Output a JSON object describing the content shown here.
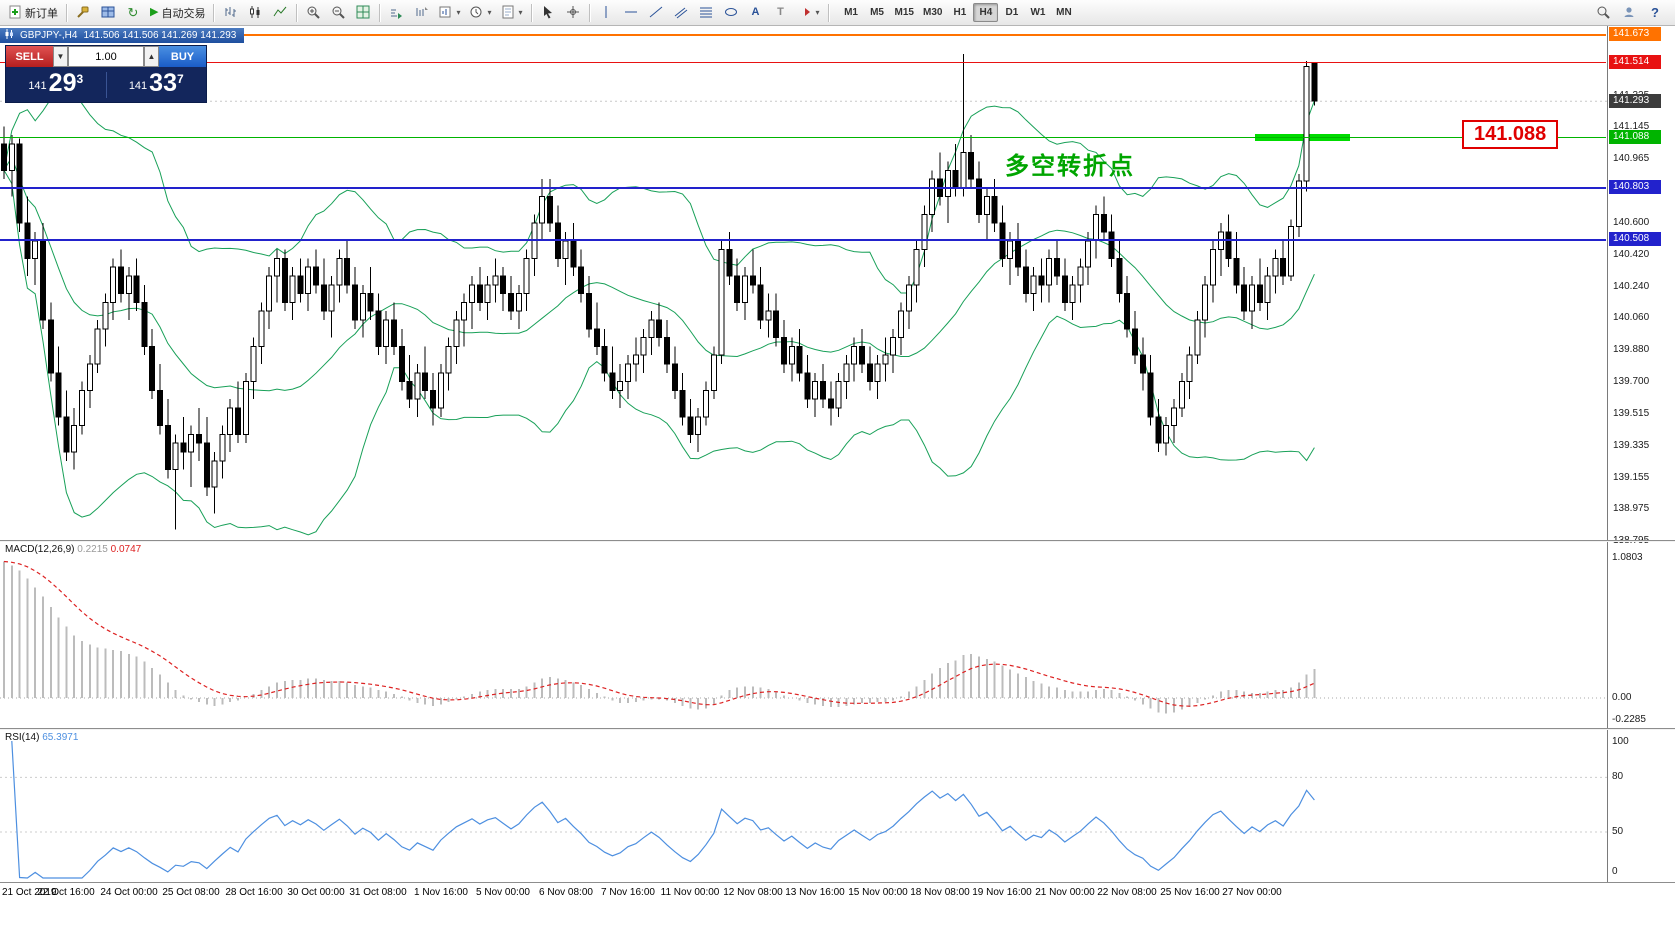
{
  "toolbar": {
    "new_order_label": "新订单",
    "auto_trading_label": "自动交易",
    "timeframes": [
      "M1",
      "M5",
      "M15",
      "M30",
      "H1",
      "H4",
      "D1",
      "W1",
      "MN"
    ],
    "active_timeframe": "H4",
    "icons": [
      "new-order-icon",
      "metaeditor-icon",
      "profiles-icon",
      "refresh-icon",
      "auto-trading-icon",
      "bar-chart-icon",
      "candlestick-chart-icon",
      "line-chart-icon",
      "zoom-in-icon",
      "zoom-out-icon",
      "tile-windows-icon",
      "autoscroll-icon",
      "chart-shift-icon",
      "new-chart-icon",
      "periods-icon",
      "templates-icon",
      "cursor-icon",
      "crosshair-icon",
      "vertical-line-icon",
      "horizontal-line-icon",
      "trendline-icon",
      "channel-icon",
      "fibonacci-icon",
      "shapes-icon",
      "text-icon",
      "arrows-icon",
      "search-icon",
      "community-icon",
      "help-icon",
      "volume-up-icon",
      "volume-down-icon"
    ]
  },
  "chart": {
    "title_symbol": "GBPJPY-,H4",
    "title_ohlc": "141.506 141.506 141.269 141.293",
    "current_price": "141.293",
    "annotation": "多空转折点",
    "price_flag_label": "141.088"
  },
  "one_click": {
    "sell_label": "SELL",
    "buy_label": "BUY",
    "volume": "1.00",
    "sell_price": {
      "prefix": "141",
      "big": "29",
      "sup": "3"
    },
    "buy_price": {
      "prefix": "141",
      "big": "33",
      "sup": "7"
    }
  },
  "indicators": {
    "macd": {
      "label": "MACD(12,26,9)",
      "value_main": "0.2215",
      "value_signal": "0.0747",
      "axis": [
        "1.0803",
        "0.00",
        "-0.2285"
      ]
    },
    "rsi": {
      "label": "RSI(14)",
      "value": "65.3971",
      "axis": [
        "100",
        "80",
        "50",
        "0"
      ]
    }
  },
  "colors": {
    "bull_candle": "#ffffff",
    "bear_candle": "#000000",
    "wick": "#000000",
    "bollinger": "#18a058",
    "macd_histogram": "#bcbcbc",
    "macd_signal": "#dd2222",
    "rsi_line": "#4d8fe0",
    "sell_button": "#c02020",
    "buy_button": "#1a5cc8",
    "panel_bg": "#13265c",
    "highlight_green": "#00dc00",
    "annotation_green": "#00a500",
    "flag_red": "#e00000",
    "current_price_box": "#3c3c3c"
  },
  "chart_data": {
    "type": "candlestick",
    "symbol": "GBPJPY",
    "timeframe": "H4",
    "price_range": [
      138.8,
      141.72
    ],
    "bid": 141.293,
    "bollinger": {
      "period": 20,
      "deviation": 2
    },
    "levels": [
      {
        "price": 141.673,
        "color": "#ff7200",
        "thickness": 2,
        "type": "resistance"
      },
      {
        "price": 141.514,
        "color": "#e81212",
        "thickness": 1,
        "type": "resistance"
      },
      {
        "price": 141.088,
        "color": "#00b400",
        "thickness": 1,
        "type": "pivot"
      },
      {
        "price": 140.803,
        "color": "#2222cc",
        "thickness": 2,
        "type": "support"
      },
      {
        "price": 140.508,
        "color": "#2222cc",
        "thickness": 2,
        "type": "support"
      }
    ],
    "y_ticks": [
      "141.325",
      "141.145",
      "140.965",
      "140.783",
      "140.600",
      "140.420",
      "140.240",
      "140.060",
      "139.880",
      "139.700",
      "139.515",
      "139.335",
      "139.155",
      "138.975",
      "138.795"
    ],
    "x_labels": [
      "21 Oct 2019",
      "22 Oct 16:00",
      "24 Oct 00:00",
      "25 Oct 08:00",
      "28 Oct 16:00",
      "30 Oct 00:00",
      "31 Oct 08:00",
      "1 Nov 16:00",
      "5 Nov 00:00",
      "6 Nov 08:00",
      "7 Nov 16:00",
      "11 Nov 00:00",
      "12 Nov 08:00",
      "13 Nov 16:00",
      "15 Nov 00:00",
      "18 Nov 08:00",
      "19 Nov 16:00",
      "21 Nov 00:00",
      "22 Nov 08:00",
      "25 Nov 16:00",
      "27 Nov 00:00"
    ],
    "candles": [
      [
        141.05,
        141.15,
        140.85,
        140.9
      ],
      [
        140.9,
        141.1,
        140.75,
        141.05
      ],
      [
        141.05,
        141.08,
        140.55,
        140.6
      ],
      [
        140.6,
        140.75,
        140.3,
        140.4
      ],
      [
        140.4,
        140.55,
        140.25,
        140.5
      ],
      [
        140.5,
        140.6,
        140.0,
        140.05
      ],
      [
        140.05,
        140.15,
        139.7,
        139.75
      ],
      [
        139.75,
        139.9,
        139.45,
        139.5
      ],
      [
        139.5,
        139.65,
        139.25,
        139.3
      ],
      [
        139.3,
        139.55,
        139.2,
        139.45
      ],
      [
        139.45,
        139.7,
        139.4,
        139.65
      ],
      [
        139.65,
        139.85,
        139.55,
        139.8
      ],
      [
        139.8,
        140.05,
        139.75,
        140.0
      ],
      [
        140.0,
        140.2,
        139.9,
        140.15
      ],
      [
        140.15,
        140.4,
        140.05,
        140.35
      ],
      [
        140.35,
        140.45,
        140.15,
        140.2
      ],
      [
        140.2,
        140.35,
        140.05,
        140.3
      ],
      [
        140.3,
        140.4,
        140.1,
        140.15
      ],
      [
        140.15,
        140.25,
        139.85,
        139.9
      ],
      [
        139.9,
        140.0,
        139.6,
        139.65
      ],
      [
        139.65,
        139.8,
        139.4,
        139.45
      ],
      [
        139.45,
        139.6,
        139.15,
        139.2
      ],
      [
        139.2,
        139.4,
        138.86,
        139.35
      ],
      [
        139.35,
        139.5,
        139.2,
        139.3
      ],
      [
        139.3,
        139.45,
        139.1,
        139.4
      ],
      [
        139.4,
        139.55,
        139.25,
        139.35
      ],
      [
        139.35,
        139.5,
        139.05,
        139.1
      ],
      [
        139.1,
        139.3,
        138.95,
        139.25
      ],
      [
        139.25,
        139.45,
        139.15,
        139.4
      ],
      [
        139.4,
        139.6,
        139.3,
        139.55
      ],
      [
        139.55,
        139.7,
        139.35,
        139.4
      ],
      [
        139.4,
        139.75,
        139.35,
        139.7
      ],
      [
        139.7,
        139.95,
        139.6,
        139.9
      ],
      [
        139.9,
        140.15,
        139.8,
        140.1
      ],
      [
        140.1,
        140.35,
        140.0,
        140.3
      ],
      [
        140.3,
        140.45,
        140.15,
        140.4
      ],
      [
        140.4,
        140.45,
        140.1,
        140.15
      ],
      [
        140.15,
        140.35,
        140.05,
        140.3
      ],
      [
        140.3,
        140.4,
        140.15,
        140.2
      ],
      [
        140.2,
        140.4,
        140.1,
        140.35
      ],
      [
        140.35,
        140.45,
        140.2,
        140.25
      ],
      [
        140.25,
        140.4,
        140.05,
        140.1
      ],
      [
        140.1,
        140.3,
        139.95,
        140.25
      ],
      [
        140.25,
        140.45,
        140.15,
        140.4
      ],
      [
        140.4,
        140.5,
        140.2,
        140.25
      ],
      [
        140.25,
        140.35,
        140.0,
        140.05
      ],
      [
        140.05,
        140.25,
        139.95,
        140.2
      ],
      [
        140.2,
        140.35,
        140.05,
        140.1
      ],
      [
        140.1,
        140.2,
        139.85,
        139.9
      ],
      [
        139.9,
        140.1,
        139.8,
        140.05
      ],
      [
        140.05,
        140.15,
        139.85,
        139.9
      ],
      [
        139.9,
        140.0,
        139.65,
        139.7
      ],
      [
        139.7,
        139.85,
        139.55,
        139.6
      ],
      [
        139.6,
        139.8,
        139.5,
        139.75
      ],
      [
        139.75,
        139.9,
        139.6,
        139.65
      ],
      [
        139.65,
        139.75,
        139.45,
        139.55
      ],
      [
        139.55,
        139.8,
        139.5,
        139.75
      ],
      [
        139.75,
        139.95,
        139.65,
        139.9
      ],
      [
        139.9,
        140.1,
        139.8,
        140.05
      ],
      [
        140.05,
        140.2,
        139.9,
        140.15
      ],
      [
        140.15,
        140.3,
        140.0,
        140.25
      ],
      [
        140.25,
        140.35,
        140.1,
        140.15
      ],
      [
        140.15,
        140.3,
        140.05,
        140.25
      ],
      [
        140.25,
        140.4,
        140.15,
        140.3
      ],
      [
        140.3,
        140.35,
        140.1,
        140.2
      ],
      [
        140.2,
        140.3,
        140.05,
        140.1
      ],
      [
        140.1,
        140.25,
        140.0,
        140.2
      ],
      [
        140.2,
        140.45,
        140.1,
        140.4
      ],
      [
        140.4,
        140.65,
        140.3,
        140.6
      ],
      [
        140.6,
        140.85,
        140.5,
        140.75
      ],
      [
        140.75,
        140.85,
        140.55,
        140.6
      ],
      [
        140.6,
        140.7,
        140.35,
        140.4
      ],
      [
        140.4,
        140.55,
        140.25,
        140.5
      ],
      [
        140.5,
        140.6,
        140.3,
        140.35
      ],
      [
        140.35,
        140.45,
        140.15,
        140.2
      ],
      [
        140.2,
        140.3,
        139.95,
        140.0
      ],
      [
        140.0,
        140.15,
        139.85,
        139.9
      ],
      [
        139.9,
        140.0,
        139.7,
        139.75
      ],
      [
        139.75,
        139.9,
        139.6,
        139.65
      ],
      [
        139.65,
        139.8,
        139.55,
        139.7
      ],
      [
        139.7,
        139.85,
        139.6,
        139.8
      ],
      [
        139.8,
        139.95,
        139.7,
        139.85
      ],
      [
        139.85,
        140.0,
        139.75,
        139.95
      ],
      [
        139.95,
        140.1,
        139.85,
        140.05
      ],
      [
        140.05,
        140.15,
        139.9,
        139.95
      ],
      [
        139.95,
        140.05,
        139.75,
        139.8
      ],
      [
        139.8,
        139.9,
        139.6,
        139.65
      ],
      [
        139.65,
        139.75,
        139.45,
        139.5
      ],
      [
        139.5,
        139.6,
        139.35,
        139.4
      ],
      [
        139.4,
        139.55,
        139.3,
        139.5
      ],
      [
        139.5,
        139.7,
        139.45,
        139.65
      ],
      [
        139.65,
        139.9,
        139.6,
        139.85
      ],
      [
        139.85,
        140.5,
        139.8,
        140.45
      ],
      [
        140.45,
        140.55,
        140.25,
        140.3
      ],
      [
        140.3,
        140.4,
        140.1,
        140.15
      ],
      [
        140.15,
        140.35,
        140.05,
        140.3
      ],
      [
        140.3,
        140.45,
        140.2,
        140.25
      ],
      [
        140.25,
        140.35,
        140.0,
        140.05
      ],
      [
        140.05,
        140.2,
        139.95,
        140.1
      ],
      [
        140.1,
        140.2,
        139.9,
        139.95
      ],
      [
        139.95,
        140.05,
        139.75,
        139.8
      ],
      [
        139.8,
        139.95,
        139.7,
        139.9
      ],
      [
        139.9,
        140.0,
        139.7,
        139.75
      ],
      [
        139.75,
        139.85,
        139.55,
        139.6
      ],
      [
        139.6,
        139.75,
        139.5,
        139.7
      ],
      [
        139.7,
        139.8,
        139.55,
        139.6
      ],
      [
        139.6,
        139.7,
        139.45,
        139.55
      ],
      [
        139.55,
        139.75,
        139.5,
        139.7
      ],
      [
        139.7,
        139.85,
        139.6,
        139.8
      ],
      [
        139.8,
        139.95,
        139.7,
        139.9
      ],
      [
        139.9,
        140.0,
        139.75,
        139.8
      ],
      [
        139.8,
        139.9,
        139.65,
        139.7
      ],
      [
        139.7,
        139.85,
        139.6,
        139.8
      ],
      [
        139.8,
        139.95,
        139.7,
        139.85
      ],
      [
        139.85,
        140.0,
        139.75,
        139.95
      ],
      [
        139.95,
        140.15,
        139.85,
        140.1
      ],
      [
        140.1,
        140.3,
        140.0,
        140.25
      ],
      [
        140.25,
        140.5,
        140.15,
        140.45
      ],
      [
        140.45,
        140.7,
        140.35,
        140.65
      ],
      [
        140.65,
        140.9,
        140.55,
        140.85
      ],
      [
        140.85,
        141.0,
        140.7,
        140.75
      ],
      [
        140.75,
        140.95,
        140.6,
        140.9
      ],
      [
        140.9,
        141.05,
        140.75,
        140.8
      ],
      [
        140.8,
        141.56,
        140.75,
        141.0
      ],
      [
        141.0,
        141.1,
        140.8,
        140.85
      ],
      [
        140.85,
        140.95,
        140.6,
        140.65
      ],
      [
        140.65,
        140.8,
        140.5,
        140.75
      ],
      [
        140.75,
        140.85,
        140.55,
        140.6
      ],
      [
        140.6,
        140.7,
        140.35,
        140.4
      ],
      [
        140.4,
        140.55,
        140.25,
        140.5
      ],
      [
        140.5,
        140.6,
        140.3,
        140.35
      ],
      [
        140.35,
        140.45,
        140.15,
        140.2
      ],
      [
        140.2,
        140.35,
        140.1,
        140.3
      ],
      [
        140.3,
        140.4,
        140.15,
        140.25
      ],
      [
        140.25,
        140.45,
        140.15,
        140.4
      ],
      [
        140.4,
        140.5,
        140.25,
        140.3
      ],
      [
        140.3,
        140.4,
        140.1,
        140.15
      ],
      [
        140.15,
        140.3,
        140.05,
        140.25
      ],
      [
        140.25,
        140.4,
        140.15,
        140.35
      ],
      [
        140.35,
        140.55,
        140.25,
        140.5
      ],
      [
        140.5,
        140.7,
        140.4,
        140.65
      ],
      [
        140.65,
        140.75,
        140.5,
        140.55
      ],
      [
        140.55,
        140.65,
        140.35,
        140.4
      ],
      [
        140.4,
        140.5,
        140.15,
        140.2
      ],
      [
        140.2,
        140.3,
        139.95,
        140.0
      ],
      [
        140.0,
        140.1,
        139.8,
        139.85
      ],
      [
        139.85,
        139.95,
        139.65,
        139.75
      ],
      [
        139.75,
        139.85,
        139.45,
        139.5
      ],
      [
        139.5,
        139.6,
        139.3,
        139.35
      ],
      [
        139.35,
        139.5,
        139.28,
        139.45
      ],
      [
        139.45,
        139.6,
        139.35,
        139.55
      ],
      [
        139.55,
        139.75,
        139.5,
        139.7
      ],
      [
        139.7,
        139.9,
        139.6,
        139.85
      ],
      [
        139.85,
        140.1,
        139.8,
        140.05
      ],
      [
        140.05,
        140.3,
        139.95,
        140.25
      ],
      [
        140.25,
        140.5,
        140.15,
        140.45
      ],
      [
        140.45,
        140.6,
        140.3,
        140.55
      ],
      [
        140.55,
        140.65,
        140.35,
        140.4
      ],
      [
        140.4,
        140.55,
        140.2,
        140.25
      ],
      [
        140.25,
        140.35,
        140.05,
        140.1
      ],
      [
        140.1,
        140.3,
        140.0,
        140.25
      ],
      [
        140.25,
        140.4,
        140.1,
        140.15
      ],
      [
        140.15,
        140.35,
        140.05,
        140.3
      ],
      [
        140.3,
        140.45,
        140.2,
        140.4
      ],
      [
        140.4,
        140.5,
        140.25,
        140.3
      ],
      [
        140.3,
        140.62,
        140.27,
        140.58
      ],
      [
        140.58,
        140.88,
        140.52,
        140.84
      ],
      [
        140.84,
        141.52,
        140.78,
        141.49
      ],
      [
        141.506,
        141.506,
        141.269,
        141.293
      ]
    ],
    "macd": [
      1.05,
      1.02,
      0.98,
      0.92,
      0.85,
      0.78,
      0.7,
      0.62,
      0.55,
      0.48,
      0.44,
      0.41,
      0.39,
      0.38,
      0.37,
      0.36,
      0.34,
      0.32,
      0.28,
      0.23,
      0.18,
      0.12,
      0.06,
      0.02,
      -0.01,
      -0.03,
      -0.05,
      -0.06,
      -0.05,
      -0.03,
      -0.02,
      0.0,
      0.03,
      0.06,
      0.09,
      0.12,
      0.13,
      0.14,
      0.14,
      0.15,
      0.15,
      0.14,
      0.13,
      0.13,
      0.12,
      0.1,
      0.09,
      0.08,
      0.06,
      0.05,
      0.03,
      0.01,
      -0.02,
      -0.04,
      -0.05,
      -0.06,
      -0.05,
      -0.03,
      -0.01,
      0.01,
      0.03,
      0.05,
      0.06,
      0.07,
      0.07,
      0.07,
      0.07,
      0.09,
      0.12,
      0.15,
      0.16,
      0.15,
      0.14,
      0.12,
      0.1,
      0.07,
      0.04,
      0.01,
      -0.02,
      -0.04,
      -0.04,
      -0.03,
      -0.02,
      -0.01,
      -0.01,
      -0.02,
      -0.04,
      -0.06,
      -0.08,
      -0.09,
      -0.08,
      -0.05,
      0.02,
      0.06,
      0.08,
      0.09,
      0.09,
      0.08,
      0.07,
      0.05,
      0.02,
      0.0,
      -0.02,
      -0.04,
      -0.05,
      -0.06,
      -0.07,
      -0.07,
      -0.06,
      -0.05,
      -0.04,
      -0.04,
      -0.03,
      -0.03,
      -0.02,
      0.01,
      0.05,
      0.09,
      0.14,
      0.19,
      0.23,
      0.27,
      0.29,
      0.33,
      0.34,
      0.32,
      0.3,
      0.28,
      0.25,
      0.22,
      0.19,
      0.16,
      0.13,
      0.11,
      0.09,
      0.08,
      0.06,
      0.05,
      0.05,
      0.05,
      0.06,
      0.07,
      0.06,
      0.04,
      0.01,
      -0.02,
      -0.05,
      -0.08,
      -0.11,
      -0.12,
      -0.11,
      -0.09,
      -0.07,
      -0.04,
      -0.01,
      0.02,
      0.05,
      0.06,
      0.06,
      0.05,
      0.04,
      0.04,
      0.05,
      0.06,
      0.06,
      0.08,
      0.12,
      0.18,
      0.2215
    ]
  }
}
